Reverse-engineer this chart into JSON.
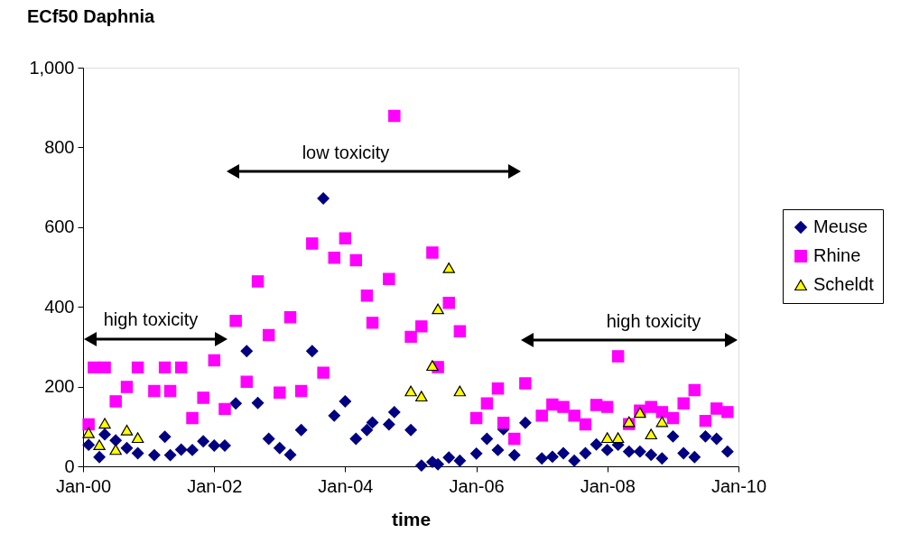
{
  "chart_data": {
    "type": "scatter",
    "title": "ECf50 Daphnia",
    "xlabel": "time",
    "xlim": [
      "2000-01",
      "2010-01"
    ],
    "xticks": [
      {
        "value": "2000-01",
        "label": "Jan-00"
      },
      {
        "value": "2002-01",
        "label": "Jan-02"
      },
      {
        "value": "2004-01",
        "label": "Jan-04"
      },
      {
        "value": "2006-01",
        "label": "Jan-06"
      },
      {
        "value": "2008-01",
        "label": "Jan-08"
      },
      {
        "value": "2010-01",
        "label": "Jan-10"
      }
    ],
    "ylim": [
      0,
      1000
    ],
    "yticks": [
      0,
      200,
      400,
      600,
      800,
      {
        "value": 1000,
        "label": "1,000"
      }
    ],
    "grid": false,
    "legend": "right",
    "series": [
      {
        "name": "Meuse",
        "color": "#000080",
        "marker": "diamond",
        "x": [
          "2000-02",
          "2000-04",
          "2000-05",
          "2000-07",
          "2000-09",
          "2000-11",
          "2001-02",
          "2001-04",
          "2001-05",
          "2001-07",
          "2001-09",
          "2001-11",
          "2002-01",
          "2002-03",
          "2002-05",
          "2002-07",
          "2002-09",
          "2002-11",
          "2003-01",
          "2003-03",
          "2003-05",
          "2003-07",
          "2003-09",
          "2003-11",
          "2004-01",
          "2004-03",
          "2004-05",
          "2004-06",
          "2004-09",
          "2004-10",
          "2005-01",
          "2005-03",
          "2005-05",
          "2005-06",
          "2005-08",
          "2005-10",
          "2006-01",
          "2006-03",
          "2006-05",
          "2006-06",
          "2006-08",
          "2006-10",
          "2007-01",
          "2007-03",
          "2007-05",
          "2007-07",
          "2007-09",
          "2007-11",
          "2008-01",
          "2008-03",
          "2008-05",
          "2008-07",
          "2008-09",
          "2008-11",
          "2009-01",
          "2009-03",
          "2009-05",
          "2009-07",
          "2009-09",
          "2009-11"
        ],
        "values": [
          54,
          23,
          80,
          65,
          46,
          33,
          28,
          74,
          28,
          42,
          41,
          63,
          52,
          52,
          158,
          289,
          159,
          69,
          46,
          29,
          91,
          289,
          672,
          127,
          163,
          69,
          91,
          110,
          105,
          136,
          91,
          2,
          11,
          5,
          22,
          14,
          32,
          69,
          41,
          93,
          28,
          109,
          20,
          24,
          33,
          14,
          33,
          55,
          41,
          54,
          37,
          37,
          29,
          20,
          75,
          33,
          23,
          75,
          69,
          37
        ]
      },
      {
        "name": "Rhine",
        "color": "#ff00ff",
        "marker": "square",
        "x": [
          "2000-02",
          "2000-03",
          "2000-05",
          "2000-07",
          "2000-09",
          "2000-11",
          "2001-02",
          "2001-04",
          "2001-05",
          "2001-07",
          "2001-09",
          "2001-11",
          "2002-01",
          "2002-03",
          "2002-05",
          "2002-07",
          "2002-09",
          "2002-11",
          "2003-01",
          "2003-03",
          "2003-05",
          "2003-07",
          "2003-09",
          "2003-11",
          "2004-01",
          "2004-03",
          "2004-05",
          "2004-06",
          "2004-09",
          "2004-10",
          "2005-01",
          "2005-03",
          "2005-05",
          "2005-06",
          "2005-08",
          "2005-10",
          "2006-01",
          "2006-03",
          "2006-05",
          "2006-06",
          "2006-08",
          "2006-10",
          "2007-01",
          "2007-03",
          "2007-05",
          "2007-07",
          "2007-09",
          "2007-11",
          "2008-01",
          "2008-03",
          "2008-05",
          "2008-07",
          "2008-09",
          "2008-11",
          "2009-01",
          "2009-03",
          "2009-05",
          "2009-07",
          "2009-09",
          "2009-11"
        ],
        "values": [
          105,
          248,
          248,
          163,
          199,
          248,
          189,
          248,
          189,
          248,
          121,
          172,
          266,
          144,
          365,
          212,
          464,
          329,
          185,
          374,
          189,
          559,
          235,
          523,
          572,
          517,
          428,
          360,
          470,
          879,
          325,
          351,
          536,
          249,
          410,
          339,
          121,
          158,
          195,
          109,
          69,
          208,
          127,
          155,
          149,
          127,
          105,
          154,
          149,
          276,
          106,
          140,
          149,
          136,
          121,
          158,
          191,
          114,
          145,
          136
        ]
      },
      {
        "name": "Scheldt",
        "color": "#ffff00",
        "marker": "triangle",
        "x": [
          "2000-02",
          "2000-04",
          "2000-05",
          "2000-07",
          "2000-09",
          "2000-11",
          "2005-01",
          "2005-03",
          "2005-05",
          "2005-06",
          "2005-08",
          "2005-10",
          "2008-01",
          "2008-03",
          "2008-05",
          "2008-07",
          "2008-09",
          "2008-11"
        ],
        "values": [
          84,
          54,
          108,
          42,
          91,
          72,
          189,
          176,
          253,
          395,
          498,
          189,
          72,
          72,
          112,
          135,
          81,
          112
        ]
      }
    ],
    "annotations": [
      "high toxicity",
      "low toxicity",
      "high toxicity"
    ]
  }
}
